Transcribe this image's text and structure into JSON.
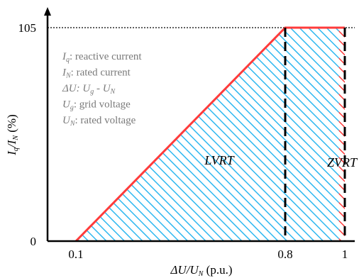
{
  "chart_data": {
    "type": "area",
    "title": "",
    "xlabel": {
      "main": "ΔU/U",
      "sub": "N",
      "unit": " (p.u.)"
    },
    "ylabel": {
      "a": "I",
      "a_sub": "q",
      "b": "/I",
      "b_sub": "N",
      "unit": " (%)"
    },
    "x_ticks": [
      "0.1",
      "0.8",
      "1"
    ],
    "y_ticks": [
      "0",
      "105"
    ],
    "xlim": [
      0.1,
      1.0
    ],
    "ylim": [
      0,
      105
    ],
    "series": [
      {
        "x": [
          0.1,
          0.8,
          1.0
        ],
        "y": [
          0,
          105,
          105
        ]
      }
    ],
    "regions": [
      {
        "label": "LVRT",
        "x_from": 0.1,
        "x_to": 0.98,
        "hatch_color": "#2fb8f0"
      },
      {
        "label": "ZVRT",
        "x_from": 0.98,
        "x_to": 1.0,
        "hatch_color": "#ff3b3b"
      }
    ],
    "dashed_lines": [
      0.8,
      1.0
    ],
    "reference_y": 105,
    "curve_color": "#ff3b3b",
    "legend": [
      {
        "sym": "I",
        "sub": "q",
        "text": ": reactive current"
      },
      {
        "sym": "I",
        "sub": "N",
        "text": ": rated current"
      },
      {
        "sym": "ΔU",
        "sub": "",
        "text": ": U",
        "sym2_sub": "g",
        "text2": " - U",
        "sym3_sub": "N"
      },
      {
        "sym": "U",
        "sub": "g",
        "text": ": grid voltage"
      },
      {
        "sym": "U",
        "sub": "N",
        "text": ": rated voltage"
      }
    ]
  }
}
